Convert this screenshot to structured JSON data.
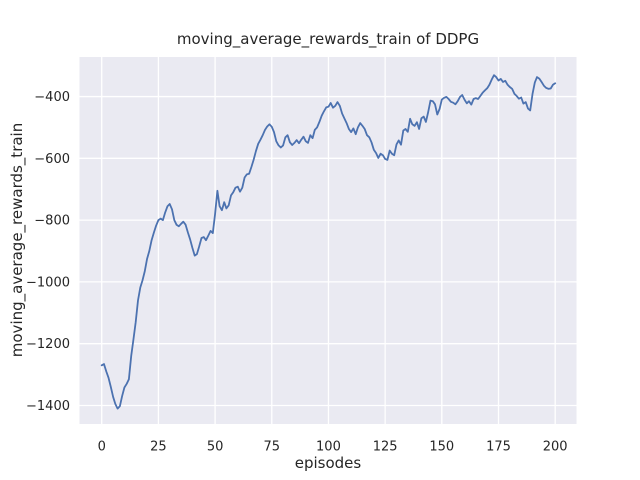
{
  "figure": {
    "title": "moving_average_rewards_train of DDPG",
    "background": "#ffffff"
  },
  "chart_data": {
    "type": "line",
    "title": "moving_average_rewards_train of DDPG",
    "xlabel": "episodes",
    "ylabel": "moving_average_rewards_train",
    "grid": true,
    "legend": "none",
    "plot_bg_color": "#eaeaf2",
    "grid_color": "#ffffff",
    "text_color": "#262626",
    "line_color": "#4c72b0",
    "xlim": [
      -9.8,
      209.4
    ],
    "ylim": [
      -1460,
      -272
    ],
    "x_ticks": [
      0,
      25,
      50,
      75,
      100,
      125,
      150,
      175,
      200
    ],
    "x_tick_labels": [
      "0",
      "25",
      "50",
      "75",
      "100",
      "125",
      "150",
      "175",
      "200"
    ],
    "y_ticks": [
      -400,
      -600,
      -800,
      -1000,
      -1200,
      -1400
    ],
    "y_tick_labels": [
      "−400",
      "−600",
      "−800",
      "−1000",
      "−1200",
      "−1400"
    ],
    "series": [
      {
        "name": "moving_average_rewards_train",
        "color": "#4c72b0",
        "x_start": 0,
        "x_step": 1,
        "values": [
          -1270,
          -1266,
          -1290,
          -1310,
          -1340,
          -1372,
          -1395,
          -1410,
          -1402,
          -1370,
          -1342,
          -1330,
          -1315,
          -1240,
          -1185,
          -1130,
          -1060,
          -1018,
          -995,
          -965,
          -925,
          -900,
          -865,
          -840,
          -818,
          -800,
          -795,
          -800,
          -775,
          -755,
          -748,
          -765,
          -800,
          -815,
          -820,
          -812,
          -805,
          -815,
          -840,
          -862,
          -890,
          -915,
          -910,
          -885,
          -858,
          -855,
          -865,
          -850,
          -835,
          -842,
          -780,
          -705,
          -755,
          -768,
          -742,
          -762,
          -752,
          -720,
          -710,
          -695,
          -692,
          -708,
          -695,
          -662,
          -652,
          -650,
          -628,
          -605,
          -577,
          -553,
          -540,
          -525,
          -508,
          -497,
          -490,
          -498,
          -515,
          -545,
          -558,
          -565,
          -558,
          -532,
          -525,
          -548,
          -557,
          -550,
          -541,
          -551,
          -540,
          -530,
          -545,
          -550,
          -525,
          -535,
          -508,
          -500,
          -482,
          -462,
          -448,
          -435,
          -433,
          -421,
          -436,
          -430,
          -418,
          -430,
          -455,
          -470,
          -486,
          -505,
          -515,
          -503,
          -522,
          -500,
          -486,
          -495,
          -505,
          -525,
          -532,
          -548,
          -572,
          -583,
          -599,
          -585,
          -590,
          -602,
          -605,
          -575,
          -585,
          -590,
          -555,
          -542,
          -556,
          -510,
          -505,
          -514,
          -472,
          -490,
          -495,
          -483,
          -505,
          -470,
          -465,
          -482,
          -450,
          -413,
          -415,
          -425,
          -458,
          -440,
          -410,
          -404,
          -401,
          -408,
          -417,
          -420,
          -425,
          -415,
          -401,
          -395,
          -410,
          -422,
          -415,
          -426,
          -408,
          -405,
          -408,
          -398,
          -388,
          -380,
          -373,
          -362,
          -345,
          -331,
          -337,
          -348,
          -343,
          -353,
          -349,
          -362,
          -369,
          -375,
          -391,
          -398,
          -407,
          -403,
          -423,
          -418,
          -439,
          -445,
          -392,
          -355,
          -337,
          -342,
          -353,
          -365,
          -372,
          -375,
          -374,
          -362,
          -357
        ]
      }
    ]
  }
}
